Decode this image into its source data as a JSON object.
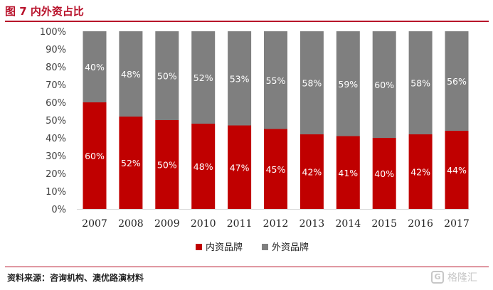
{
  "header": {
    "title": "图 7  内外资占比"
  },
  "footer": {
    "source": "资料来源：咨询机构、澳优路演材料"
  },
  "watermark": {
    "logo_glyph": "G",
    "text": "格隆汇"
  },
  "colors": {
    "domestic": "#c00000",
    "foreign": "#7f7f7f",
    "accent": "#b8112a"
  },
  "chart_data": {
    "type": "bar",
    "stacked": true,
    "title": "",
    "xlabel": "",
    "ylabel": "",
    "ylim": [
      0,
      100
    ],
    "yticks": [
      "0%",
      "10%",
      "20%",
      "30%",
      "40%",
      "50%",
      "60%",
      "70%",
      "80%",
      "90%",
      "100%"
    ],
    "categories": [
      "2007",
      "2008",
      "2009",
      "2010",
      "2011",
      "2012",
      "2013",
      "2014",
      "2015",
      "2016",
      "2017"
    ],
    "series": [
      {
        "name": "内资品牌",
        "values": [
          60,
          52,
          50,
          48,
          47,
          45,
          42,
          41,
          40,
          42,
          44
        ],
        "labels": [
          "60%",
          "52%",
          "50%",
          "48%",
          "47%",
          "45%",
          "42%",
          "41%",
          "40%",
          "42%",
          "44%"
        ]
      },
      {
        "name": "外资品牌",
        "values": [
          40,
          48,
          50,
          52,
          53,
          55,
          58,
          59,
          60,
          58,
          56
        ],
        "labels": [
          "40%",
          "48%",
          "50%",
          "52%",
          "53%",
          "55%",
          "58%",
          "59%",
          "60%",
          "58%",
          "56%"
        ]
      }
    ],
    "legend_position": "bottom"
  }
}
